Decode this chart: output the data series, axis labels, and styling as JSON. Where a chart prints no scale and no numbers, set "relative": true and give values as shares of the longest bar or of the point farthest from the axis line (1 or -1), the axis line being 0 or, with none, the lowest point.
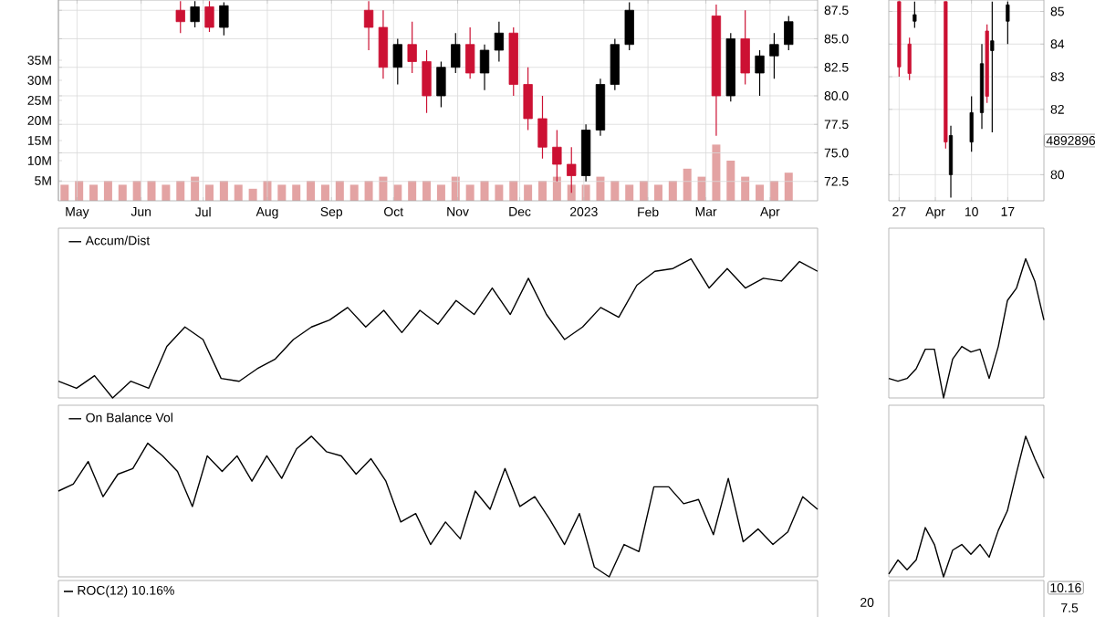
{
  "chart_data": [
    {
      "type": "candlestick",
      "grid": true,
      "x": [
        "2022-06-20",
        "2022-06-27",
        "2022-07-04",
        "2022-07-11",
        "2022-09-19",
        "2022-09-26",
        "2022-10-03",
        "2022-10-10",
        "2022-10-17",
        "2022-10-24",
        "2022-10-31",
        "2022-11-07",
        "2022-11-14",
        "2022-11-21",
        "2022-11-28",
        "2022-12-05",
        "2022-12-12",
        "2022-12-19",
        "2022-12-26",
        "2023-01-02",
        "2023-01-09",
        "2023-01-16",
        "2023-01-23",
        "2023-03-06",
        "2023-03-13",
        "2023-03-20",
        "2023-03-27",
        "2023-04-03",
        "2023-04-10"
      ],
      "ohlc": [
        [
          87.5,
          88.3,
          85.5,
          86.5
        ],
        [
          86.5,
          88.3,
          86.0,
          87.8
        ],
        [
          87.8,
          88.3,
          85.6,
          86.0
        ],
        [
          86.0,
          88.2,
          85.3,
          87.9
        ],
        [
          87.5,
          88.3,
          84.0,
          86.0
        ],
        [
          86.0,
          87.5,
          81.5,
          82.5
        ],
        [
          82.5,
          85.0,
          81.0,
          84.5
        ],
        [
          84.5,
          86.5,
          82.0,
          83.0
        ],
        [
          83.0,
          84.0,
          78.5,
          80.0
        ],
        [
          80.0,
          83.0,
          79.0,
          82.5
        ],
        [
          82.5,
          85.5,
          82.0,
          84.5
        ],
        [
          84.5,
          86.0,
          81.5,
          82.0
        ],
        [
          82.0,
          84.5,
          80.5,
          84.0
        ],
        [
          84.0,
          86.5,
          83.0,
          85.5
        ],
        [
          85.5,
          86.0,
          80.0,
          81.0
        ],
        [
          81.0,
          82.5,
          77.0,
          78.0
        ],
        [
          78.0,
          80.0,
          74.5,
          75.5
        ],
        [
          75.5,
          77.0,
          72.5,
          74.0
        ],
        [
          74.0,
          75.5,
          71.5,
          73.0
        ],
        [
          73.0,
          77.5,
          72.5,
          77.0
        ],
        [
          77.0,
          81.5,
          76.5,
          81.0
        ],
        [
          81.0,
          85.0,
          80.5,
          84.5
        ],
        [
          84.5,
          88.2,
          84.0,
          87.5
        ],
        [
          87.0,
          88.0,
          76.5,
          80.0
        ],
        [
          80.0,
          85.5,
          79.5,
          85.0
        ],
        [
          85.0,
          87.5,
          81.0,
          82.0
        ],
        [
          82.0,
          84.0,
          80.0,
          83.5
        ],
        [
          83.5,
          85.5,
          81.5,
          84.5
        ],
        [
          84.5,
          87.0,
          84.0,
          86.5
        ]
      ],
      "colors": [
        "#cc1133",
        "#000000",
        "#cc1133",
        "#000000",
        "#cc1133",
        "#cc1133",
        "#000000",
        "#cc1133",
        "#cc1133",
        "#000000",
        "#000000",
        "#cc1133",
        "#000000",
        "#000000",
        "#cc1133",
        "#cc1133",
        "#cc1133",
        "#cc1133",
        "#cc1133",
        "#000000",
        "#000000",
        "#000000",
        "#000000",
        "#cc1133",
        "#000000",
        "#cc1133",
        "#000000",
        "#000000",
        "#000000"
      ],
      "xlim": [
        "2022-04-22",
        "2023-04-24"
      ],
      "xticks": [
        {
          "value": "2022-05-01",
          "label": "May"
        },
        {
          "value": "2022-06-01",
          "label": "Jun"
        },
        {
          "value": "2022-07-01",
          "label": "Jul"
        },
        {
          "value": "2022-08-01",
          "label": "Aug"
        },
        {
          "value": "2022-09-01",
          "label": "Sep"
        },
        {
          "value": "2022-10-01",
          "label": "Oct"
        },
        {
          "value": "2022-11-01",
          "label": "Nov"
        },
        {
          "value": "2022-12-01",
          "label": "Dec"
        },
        {
          "value": "2023-01-01",
          "label": "2023"
        },
        {
          "value": "2023-02-01",
          "label": "Feb"
        },
        {
          "value": "2023-03-01",
          "label": "Mar"
        },
        {
          "value": "2023-04-01",
          "label": "Apr"
        }
      ],
      "ylim": [
        70.8,
        88.4
      ],
      "yticks": [
        72.5,
        {
          "value": 75,
          "label": "75.0"
        },
        77.5,
        {
          "value": 80,
          "label": "80.0"
        },
        82.5,
        {
          "value": 85,
          "label": "85.0"
        },
        87.5
      ],
      "y2lim": [
        0,
        50
      ],
      "y2ticks": [
        {
          "value": 5,
          "label": "5M"
        },
        {
          "value": 10,
          "label": "10M"
        },
        {
          "value": 15,
          "label": "15M"
        },
        {
          "value": 20,
          "label": "20M"
        },
        {
          "value": 25,
          "label": "25M"
        },
        {
          "value": 30,
          "label": "30M"
        },
        {
          "value": 35,
          "label": "35M"
        }
      ],
      "series": [
        {
          "type": "bar",
          "axis": "y2",
          "color": "#e3a3a3",
          "x": [
            "2022-04-25",
            "2022-05-02",
            "2022-05-09",
            "2022-05-16",
            "2022-05-23",
            "2022-05-30",
            "2022-06-06",
            "2022-06-13",
            "2022-06-20",
            "2022-06-27",
            "2022-07-04",
            "2022-07-11",
            "2022-07-18",
            "2022-07-25",
            "2022-08-01",
            "2022-08-08",
            "2022-08-15",
            "2022-08-22",
            "2022-08-29",
            "2022-09-05",
            "2022-09-12",
            "2022-09-19",
            "2022-09-26",
            "2022-10-03",
            "2022-10-10",
            "2022-10-17",
            "2022-10-24",
            "2022-10-31",
            "2022-11-07",
            "2022-11-14",
            "2022-11-21",
            "2022-11-28",
            "2022-12-05",
            "2022-12-12",
            "2022-12-19",
            "2022-12-26",
            "2023-01-02",
            "2023-01-09",
            "2023-01-16",
            "2023-01-23",
            "2023-01-30",
            "2023-02-06",
            "2023-02-13",
            "2023-02-20",
            "2023-02-27",
            "2023-03-06",
            "2023-03-13",
            "2023-03-20",
            "2023-03-27",
            "2023-04-03",
            "2023-04-10"
          ],
          "values": [
            4,
            5,
            4,
            5,
            4,
            5,
            5,
            4,
            5,
            6,
            4,
            5,
            4,
            3,
            5,
            4,
            4,
            5,
            4,
            5,
            4,
            5,
            6,
            4,
            5,
            5,
            4,
            6,
            4,
            5,
            4,
            5,
            4,
            5,
            6,
            4,
            4,
            6,
            5,
            4,
            5,
            4,
            5,
            8,
            6,
            14,
            10,
            6,
            4,
            5,
            7
          ]
        }
      ]
    },
    {
      "type": "candlestick",
      "grid": true,
      "annotations": [
        "4892896"
      ],
      "x": [
        "2023-03-27",
        "2023-03-29",
        "2023-03-30",
        "2023-04-05",
        "2023-04-06",
        "2023-04-10",
        "2023-04-12",
        "2023-04-13",
        "2023-04-14",
        "2023-04-17"
      ],
      "ohlc": [
        [
          85.3,
          85.3,
          83.0,
          83.3
        ],
        [
          84.0,
          84.2,
          82.9,
          83.1
        ],
        [
          84.7,
          85.3,
          84.5,
          84.9
        ],
        [
          85.3,
          85.3,
          80.8,
          81.0
        ],
        [
          80.0,
          81.5,
          79.3,
          81.2
        ],
        [
          81.0,
          82.4,
          80.7,
          81.9
        ],
        [
          81.9,
          84.0,
          81.4,
          83.4
        ],
        [
          84.4,
          84.6,
          82.2,
          82.4
        ],
        [
          83.8,
          85.3,
          81.3,
          84.1
        ],
        [
          84.7,
          85.3,
          84.0,
          85.2
        ]
      ],
      "colors": [
        "#cc1133",
        "#cc1133",
        "#000000",
        "#cc1133",
        "#000000",
        "#000000",
        "#000000",
        "#cc1133",
        "#000000",
        "#000000"
      ],
      "xlim": [
        "2023-03-25",
        "2023-04-24"
      ],
      "xticks": [
        {
          "value": "2023-03-27",
          "label": "27"
        },
        {
          "value": "2023-04-03",
          "label": "Apr"
        },
        {
          "value": "2023-04-10",
          "label": "10"
        },
        {
          "value": "2023-04-17",
          "label": "17"
        }
      ],
      "ylim": [
        79.2,
        85.35
      ],
      "yticks": [
        80,
        82,
        83,
        84,
        85
      ]
    },
    {
      "type": "line",
      "relative": true,
      "legend": "top left",
      "categories": [
        null,
        null,
        null,
        null,
        null,
        null,
        null,
        null,
        null,
        null,
        null,
        null,
        null,
        null,
        null,
        null,
        null,
        null,
        null,
        null,
        null,
        null,
        null,
        null,
        null,
        null,
        null,
        null,
        null,
        null,
        null,
        null,
        null,
        null,
        null,
        null,
        null,
        null,
        null,
        null,
        null,
        null,
        null
      ],
      "series": [
        {
          "name": "Accum/Dist",
          "color": "#000000",
          "values": [
            0.12,
            0.07,
            0.16,
            0,
            0.12,
            0.07,
            0.37,
            0.51,
            0.42,
            0.14,
            0.12,
            0.21,
            0.28,
            0.42,
            0.51,
            0.56,
            0.65,
            0.51,
            0.63,
            0.47,
            0.63,
            0.53,
            0.7,
            0.6,
            0.79,
            0.6,
            0.86,
            0.6,
            0.42,
            0.51,
            0.65,
            0.58,
            0.81,
            0.91,
            0.93,
            1,
            0.79,
            0.93,
            0.79,
            0.86,
            0.84,
            0.98,
            0.91
          ]
        }
      ]
    },
    {
      "type": "line",
      "relative": true,
      "categories": [
        null,
        null,
        null,
        null,
        null,
        null,
        null,
        null,
        null,
        null,
        null,
        null,
        null,
        null,
        null,
        null,
        null,
        null
      ],
      "series": [
        {
          "color": "#000000",
          "values": [
            0.14,
            0.12,
            0.14,
            0.21,
            0.35,
            0.35,
            0,
            0.28,
            0.37,
            0.33,
            0.35,
            0.14,
            0.37,
            0.7,
            0.79,
            1,
            0.84,
            0.56
          ]
        }
      ]
    },
    {
      "type": "line",
      "relative": true,
      "legend": "top left",
      "categories": [
        null,
        null,
        null,
        null,
        null,
        null,
        null,
        null,
        null,
        null,
        null,
        null,
        null,
        null,
        null,
        null,
        null,
        null,
        null,
        null,
        null,
        null,
        null,
        null,
        null,
        null,
        null,
        null,
        null,
        null,
        null,
        null,
        null,
        null,
        null,
        null,
        null,
        null,
        null,
        null,
        null,
        null,
        null,
        null,
        null,
        null,
        null,
        null,
        null,
        null,
        null,
        null
      ],
      "series": [
        {
          "name": "On Balance Vol",
          "color": "#000000",
          "values": [
            0.61,
            0.66,
            0.82,
            0.57,
            0.73,
            0.77,
            0.95,
            0.86,
            0.75,
            0.5,
            0.86,
            0.75,
            0.86,
            0.68,
            0.86,
            0.7,
            0.91,
            1,
            0.89,
            0.86,
            0.73,
            0.84,
            0.68,
            0.39,
            0.45,
            0.23,
            0.39,
            0.27,
            0.61,
            0.48,
            0.77,
            0.5,
            0.57,
            0.41,
            0.23,
            0.45,
            0.07,
            0,
            0.23,
            0.18,
            0.64,
            0.64,
            0.52,
            0.55,
            0.3,
            0.7,
            0.25,
            0.34,
            0.23,
            0.32,
            0.57,
            0.48
          ]
        }
      ]
    },
    {
      "type": "line",
      "relative": true,
      "categories": [
        null,
        null,
        null,
        null,
        null,
        null,
        null,
        null,
        null,
        null,
        null,
        null,
        null,
        null,
        null,
        null,
        null,
        null
      ],
      "series": [
        {
          "color": "#000000",
          "values": [
            0.02,
            0.12,
            0.05,
            0.12,
            0.35,
            0.23,
            0,
            0.19,
            0.23,
            0.16,
            0.23,
            0.14,
            0.33,
            0.47,
            0.74,
            1,
            0.84,
            0.7
          ]
        }
      ]
    },
    {
      "type": "other",
      "title": "ROC(12) 10.16%",
      "annotations": [
        "20"
      ]
    },
    {
      "type": "other",
      "annotations": [
        "10.16",
        "7.5"
      ]
    }
  ]
}
